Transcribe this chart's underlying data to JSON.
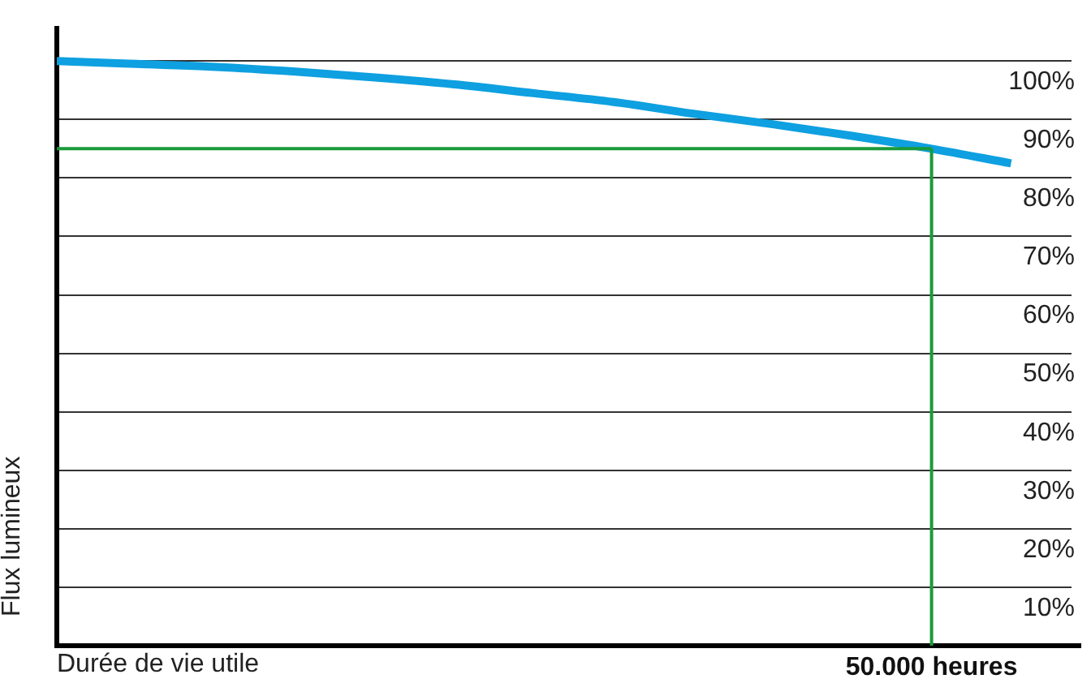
{
  "chart_data": {
    "type": "line",
    "xlabel": "Durée de vie utile",
    "ylabel": "Flux lumineux",
    "categories": [
      null,
      null,
      null,
      null,
      null,
      null,
      null,
      null,
      null,
      null,
      null,
      "50.000 heures",
      null
    ],
    "series": [
      {
        "color": "#0ea0e0",
        "values": [
          100,
          99.5,
          99,
          98.2,
          97.2,
          96,
          94.5,
          93,
          91,
          89.2,
          87.2,
          85,
          82.5
        ]
      }
    ],
    "ylim": [
      0,
      106
    ],
    "yticks": [
      {
        "value": 0,
        "label": null
      },
      {
        "value": 10,
        "label": "10%"
      },
      {
        "value": 20,
        "label": "20%"
      },
      {
        "value": 30,
        "label": "30%"
      },
      {
        "value": 40,
        "label": "40%"
      },
      {
        "value": 50,
        "label": "50%"
      },
      {
        "value": 60,
        "label": "60%"
      },
      {
        "value": 70,
        "label": "70%"
      },
      {
        "value": 80,
        "label": "80%"
      },
      {
        "value": 90,
        "label": "90%"
      },
      {
        "value": 100,
        "label": "100%"
      }
    ],
    "ref_lines": [
      {
        "axis": "y",
        "value": 85,
        "color": "#1a9a3a"
      },
      {
        "axis": "x",
        "value": "50.000 heures",
        "color": "#1a9a3a"
      }
    ],
    "grid": "y",
    "legend": false,
    "marker": "none",
    "line_style": "solid"
  }
}
